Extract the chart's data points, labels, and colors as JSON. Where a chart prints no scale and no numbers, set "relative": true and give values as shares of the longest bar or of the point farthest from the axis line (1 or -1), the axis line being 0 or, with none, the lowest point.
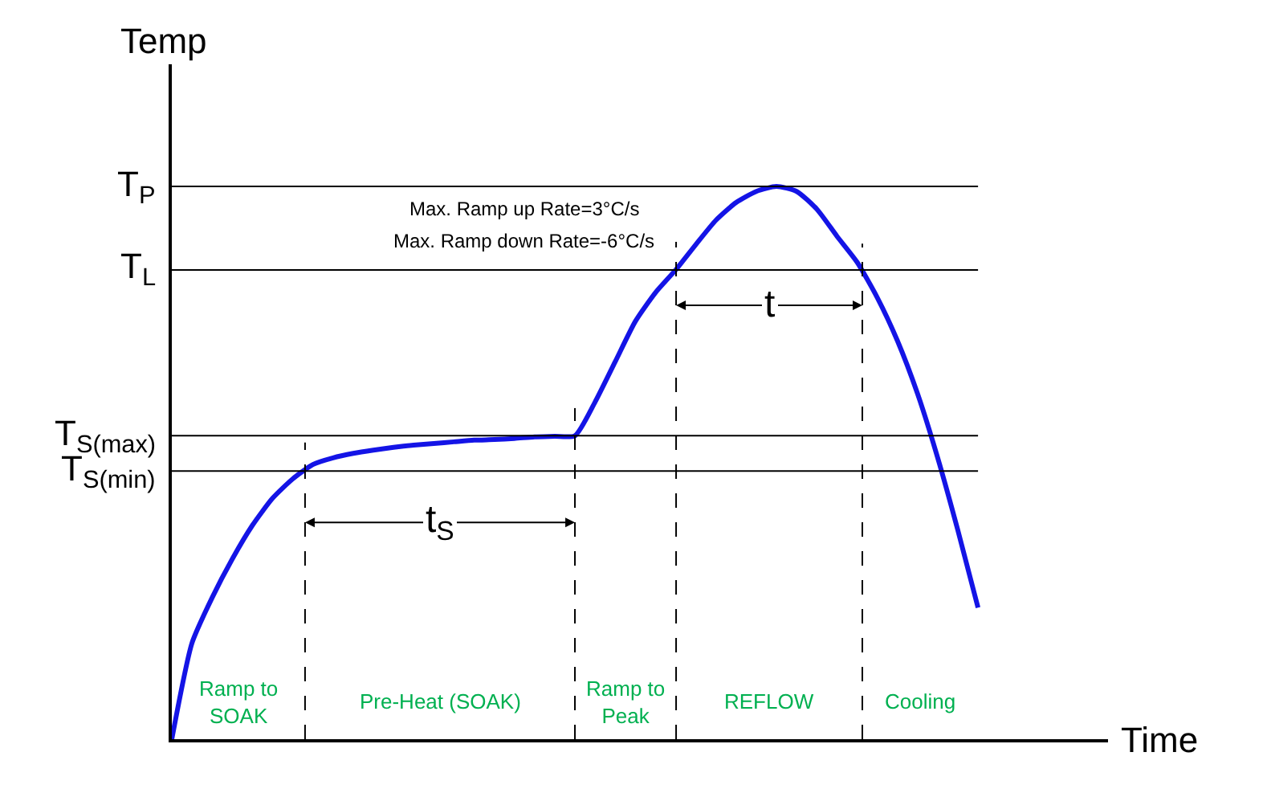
{
  "chart_data": {
    "type": "line",
    "relative": true,
    "xlabel": "Time",
    "ylabel": "Temp",
    "categories": [
      null,
      null,
      null,
      null,
      null,
      null,
      null,
      null,
      null,
      null,
      null,
      null,
      null,
      null,
      null,
      null,
      null,
      null,
      null,
      null,
      null,
      null,
      null,
      null,
      null,
      null,
      null,
      null,
      null,
      null,
      null,
      null,
      null,
      null,
      null,
      null,
      null,
      null,
      null,
      null,
      null
    ],
    "series": [
      {
        "color": "#1414e6",
        "values": [
          0,
          0.174,
          0.256,
          0.326,
          0.387,
          0.436,
          0.471,
          0.497,
          0.509,
          0.517,
          0.523,
          0.528,
          0.532,
          0.535,
          0.538,
          0.541,
          0.542,
          0.544,
          0.547,
          0.548,
          0.549,
          0.61,
          0.683,
          0.756,
          0.808,
          0.849,
          0.895,
          0.939,
          0.971,
          0.991,
          1.0,
          0.991,
          0.959,
          0.91,
          0.863,
          0.799,
          0.721,
          0.625,
          0.509,
          0.378,
          0.238
        ]
      }
    ],
    "ref_lines": [
      {
        "axis": "y",
        "value": 1.0,
        "label": "T$_{P}$",
        "color": "#000000",
        "line_style": "solid"
      },
      {
        "axis": "y",
        "value": 0.849,
        "label": "T$_{L}$",
        "color": "#000000",
        "line_style": "solid"
      },
      {
        "axis": "y",
        "value": 0.549,
        "label": "T$_{S(max)}$",
        "color": "#000000",
        "line_style": "solid"
      },
      {
        "axis": "y",
        "value": 0.485,
        "label": "T$_{S(min)}$",
        "color": "#000000",
        "line_style": "solid"
      }
    ],
    "annotations": [
      "Max. Ramp up Rate=3°C/s",
      "Max. Ramp down Rate=-6°C/s",
      "t$_{S}$",
      "t",
      "Ramp to SOAK",
      "Pre-Heat (SOAK)",
      "Ramp to Peak",
      "REFLOW",
      "Cooling"
    ],
    "marker": "none",
    "line_style": "solid"
  }
}
